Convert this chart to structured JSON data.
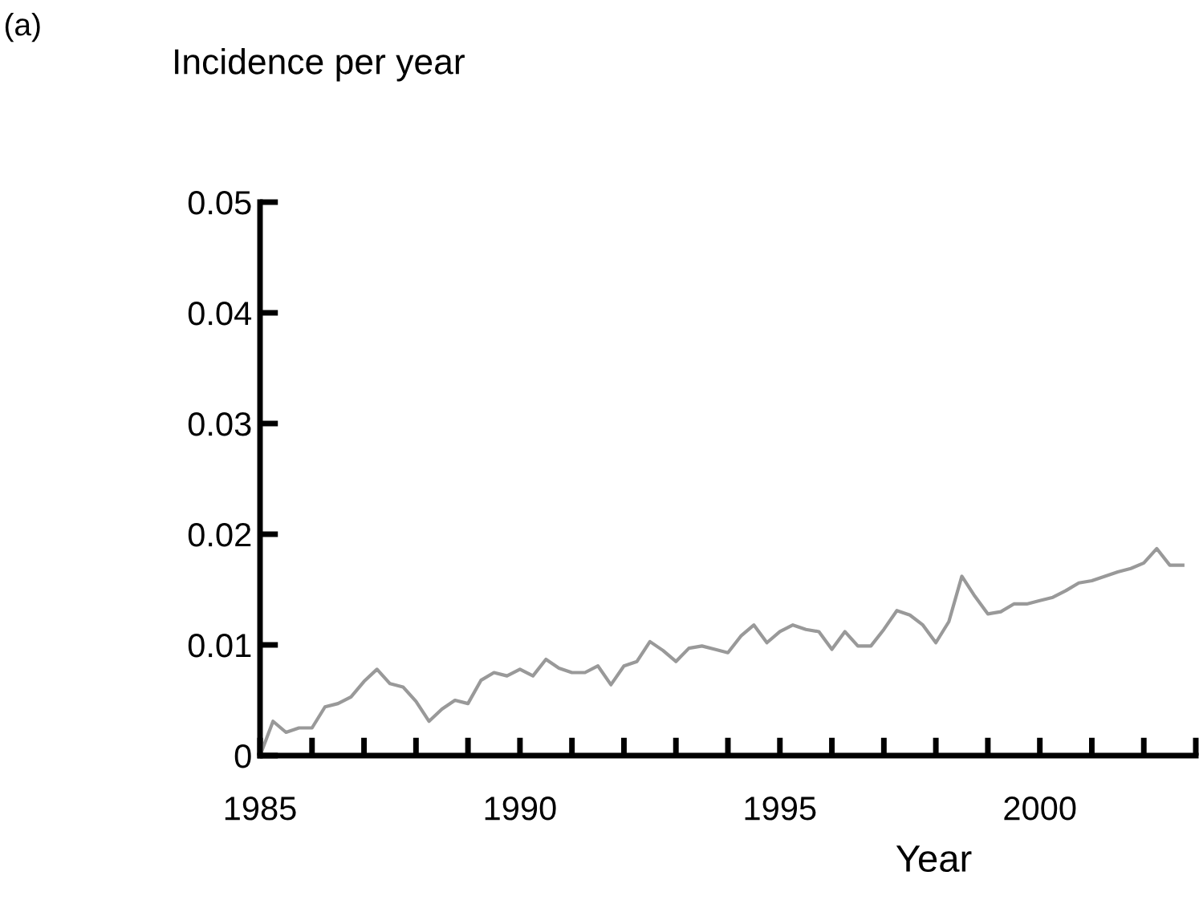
{
  "chart_data": {
    "type": "line",
    "xlabel": "Year",
    "ylabel": "Incidence per year",
    "annotations": [
      "(a)"
    ],
    "x": [
      1985,
      1985.25,
      1985.5,
      1985.75,
      1986,
      1986.25,
      1986.5,
      1986.75,
      1987,
      1987.25,
      1987.5,
      1987.75,
      1988,
      1988.25,
      1988.5,
      1988.75,
      1989,
      1989.25,
      1989.5,
      1989.75,
      1990,
      1990.25,
      1990.5,
      1990.75,
      1991,
      1991.25,
      1991.5,
      1991.75,
      1992,
      1992.25,
      1992.5,
      1992.75,
      1993,
      1993.25,
      1993.5,
      1993.75,
      1994,
      1994.25,
      1994.5,
      1994.75,
      1995,
      1995.25,
      1995.5,
      1995.75,
      1996,
      1996.25,
      1996.5,
      1996.75,
      1997,
      1997.25,
      1997.5,
      1997.75,
      1998,
      1998.25,
      1998.5,
      1998.75,
      1999,
      1999.25,
      1999.5,
      1999.75,
      2000,
      2000.25,
      2000.5,
      2000.75,
      2001,
      2001.25,
      2001.5,
      2001.75,
      2002,
      2002.25,
      2002.5,
      2002.75
    ],
    "series": [
      {
        "color": "#999999",
        "values": [
          0,
          0.0031,
          0.0021,
          0.0025,
          0.0025,
          0.0044,
          0.0047,
          0.0053,
          0.0067,
          0.0078,
          0.0065,
          0.0062,
          0.0049,
          0.0031,
          0.0042,
          0.005,
          0.0047,
          0.0068,
          0.0075,
          0.0072,
          0.0078,
          0.0072,
          0.0087,
          0.0079,
          0.0075,
          0.0075,
          0.0081,
          0.0064,
          0.0081,
          0.0085,
          0.0103,
          0.0095,
          0.0085,
          0.0097,
          0.0099,
          0.0096,
          0.0093,
          0.0108,
          0.0118,
          0.0102,
          0.0112,
          0.0118,
          0.0114,
          0.0112,
          0.0096,
          0.0112,
          0.0099,
          0.0099,
          0.0114,
          0.0131,
          0.0127,
          0.0118,
          0.0102,
          0.0121,
          0.0162,
          0.0144,
          0.0128,
          0.013,
          0.0137,
          0.0137,
          0.014,
          0.0143,
          0.0149,
          0.0156,
          0.0158,
          0.0162,
          0.0166,
          0.0169,
          0.0174,
          0.0187,
          0.0172,
          0.0172
        ]
      }
    ],
    "xlim": [
      1985,
      2003
    ],
    "xticks": [
      1985,
      {
        "value": 1986,
        "label": null
      },
      {
        "value": 1987,
        "label": null
      },
      {
        "value": 1988,
        "label": null
      },
      {
        "value": 1989,
        "label": null
      },
      1990,
      {
        "value": 1991,
        "label": null
      },
      {
        "value": 1992,
        "label": null
      },
      {
        "value": 1993,
        "label": null
      },
      {
        "value": 1994,
        "label": null
      },
      1995,
      {
        "value": 1996,
        "label": null
      },
      {
        "value": 1997,
        "label": null
      },
      {
        "value": 1998,
        "label": null
      },
      {
        "value": 1999,
        "label": null
      },
      2000,
      {
        "value": 2001,
        "label": null
      },
      {
        "value": 2002,
        "label": null
      },
      {
        "value": 2003,
        "label": null
      }
    ],
    "ylim": [
      0,
      0.05
    ],
    "yticks": [
      0,
      0.01,
      0.02,
      0.03,
      0.04,
      0.05
    ],
    "grid": false,
    "legend": false,
    "marker": "none",
    "line_style": "solid"
  }
}
